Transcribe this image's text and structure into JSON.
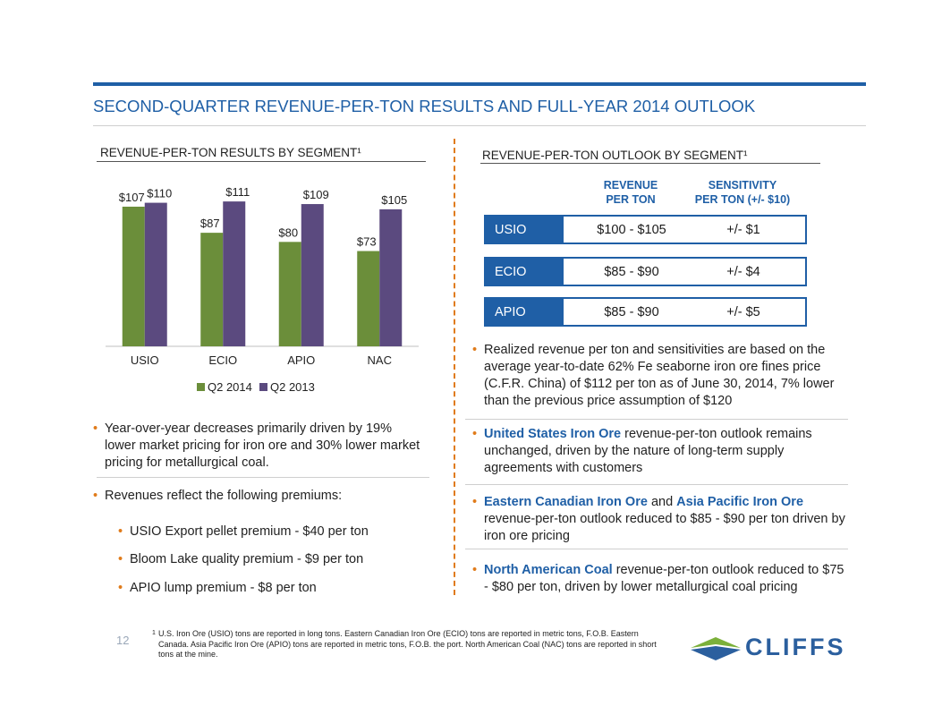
{
  "title": "SECOND-QUARTER REVENUE-PER-TON RESULTS AND FULL-YEAR 2014 OUTLOOK",
  "left": {
    "heading": "REVENUE-PER-TON RESULTS BY SEGMENT¹",
    "bullet1": "Year-over-year decreases primarily driven by 19% lower market pricing for iron ore and 30% lower market pricing for metallurgical coal.",
    "bullet2": "Revenues reflect the following premiums:",
    "sub": [
      "USIO Export pellet premium - $40 per ton",
      "Bloom Lake quality premium - $9 per ton",
      "APIO lump premium - $8 per ton"
    ]
  },
  "chart_data": {
    "type": "bar",
    "categories": [
      "USIO",
      "ECIO",
      "APIO",
      "NAC"
    ],
    "series": [
      {
        "name": "Q2 2014",
        "values": [
          107,
          87,
          80,
          73
        ],
        "labels": [
          "$107",
          "$87",
          "$80",
          "$73"
        ],
        "color": "#6b8e3a"
      },
      {
        "name": "Q2 2013",
        "values": [
          110,
          111,
          109,
          105
        ],
        "labels": [
          "$110",
          "$111",
          "$109",
          "$105"
        ],
        "color": "#5b4a7f"
      }
    ],
    "ylim": [
      0,
      120
    ],
    "legend": "bottom",
    "grid": false
  },
  "right": {
    "heading": "REVENUE-PER-TON OUTLOOK BY SEGMENT¹",
    "col1": "REVENUE\nPER TON",
    "col2": "SENSITIVITY\nPER TON (+/- $10)",
    "rows": [
      {
        "segment": "USIO",
        "revenue": "$100 - $105",
        "sensitivity": "+/- $1"
      },
      {
        "segment": "ECIO",
        "revenue": "$85 - $90",
        "sensitivity": "+/- $4"
      },
      {
        "segment": "APIO",
        "revenue": "$85 - $90",
        "sensitivity": "+/- $5"
      }
    ],
    "b1": "Realized revenue per ton and sensitivities are based on the average year-to-date 62% Fe seaborne iron ore fines price (C.F.R. China) of $112 per ton as of June 30, 2014, 7% lower than the previous price assumption of $120",
    "b2_hl": "United States Iron Ore",
    "b2_rest": " revenue-per-ton outlook remains unchanged, driven by the nature of long-term supply agreements with customers",
    "b3_hl1": "Eastern Canadian Iron Ore",
    "b3_and": " and ",
    "b3_hl2": "Asia Pacific Iron Ore",
    "b3_rest": " revenue-per-ton outlook reduced to $85 - $90 per ton driven by iron ore pricing",
    "b4_hl": "North American Coal",
    "b4_rest": " revenue-per-ton outlook reduced to $75 - $80 per ton, driven by lower metallurgical coal pricing"
  },
  "footer": {
    "page": "12",
    "sup": "1",
    "footnote": "U.S. Iron Ore (USIO) tons are reported in long tons.  Eastern Canadian Iron Ore (ECIO) tons are reported in metric tons, F.O.B. Eastern Canada.  Asia Pacific Iron Ore (APIO) tons are reported in metric tons, F.O.B. the port.  North American Coal (NAC) tons are reported in short tons at the mine.",
    "logo": "CLIFFS"
  },
  "bullet_glyph": "•",
  "colors": {
    "accent": "#1f5fa6",
    "orange": "#e07b1a"
  }
}
